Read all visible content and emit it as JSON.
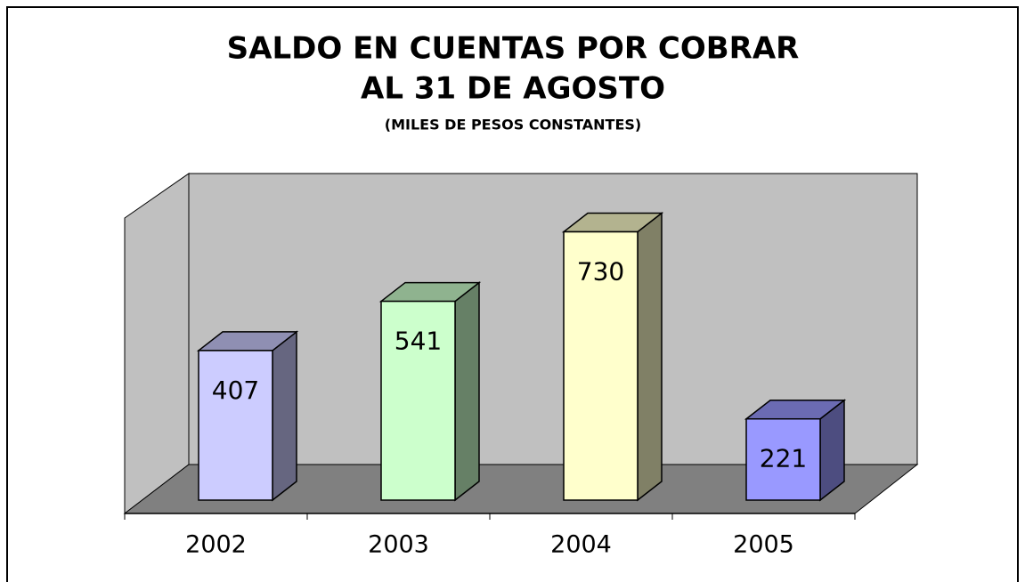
{
  "chart_data": {
    "type": "bar3d",
    "title": [
      "SALDO EN CUENTAS POR COBRAR",
      "AL 31 DE AGOSTO"
    ],
    "subtitle": "(MILES DE PESOS CONSTANTES)",
    "categories": [
      "2002",
      "2003",
      "2004",
      "2005"
    ],
    "values": [
      407,
      541,
      730,
      221
    ],
    "colors": [
      "#ccccff",
      "#ccffcc",
      "#ffffcc",
      "#9999ff"
    ]
  }
}
